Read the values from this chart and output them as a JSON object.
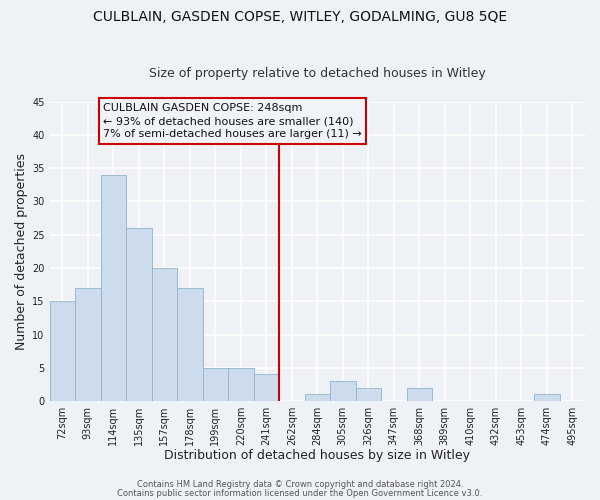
{
  "title": "CULBLAIN, GASDEN COPSE, WITLEY, GODALMING, GU8 5QE",
  "subtitle": "Size of property relative to detached houses in Witley",
  "xlabel": "Distribution of detached houses by size in Witley",
  "ylabel": "Number of detached properties",
  "bar_labels": [
    "72sqm",
    "93sqm",
    "114sqm",
    "135sqm",
    "157sqm",
    "178sqm",
    "199sqm",
    "220sqm",
    "241sqm",
    "262sqm",
    "284sqm",
    "305sqm",
    "326sqm",
    "347sqm",
    "368sqm",
    "389sqm",
    "410sqm",
    "432sqm",
    "453sqm",
    "474sqm",
    "495sqm"
  ],
  "bar_values": [
    15,
    17,
    34,
    26,
    20,
    17,
    5,
    5,
    4,
    0,
    1,
    3,
    2,
    0,
    2,
    0,
    0,
    0,
    0,
    1,
    0
  ],
  "bar_color": "#ccdcec",
  "bar_edge_color": "#90b4cc",
  "vline_x_bin": 8,
  "vline_color": "#cc0000",
  "annotation_title": "CULBLAIN GASDEN COPSE: 248sqm",
  "annotation_line1": "← 93% of detached houses are smaller (140)",
  "annotation_line2": "7% of semi-detached houses are larger (11) →",
  "annotation_box_color": "#cc0000",
  "annotation_bg": "#f0f4f8",
  "ylim": [
    0,
    45
  ],
  "yticks": [
    0,
    5,
    10,
    15,
    20,
    25,
    30,
    35,
    40,
    45
  ],
  "footer1": "Contains HM Land Registry data © Crown copyright and database right 2024.",
  "footer2": "Contains public sector information licensed under the Open Government Licence v3.0.",
  "bg_color": "#eef2f7",
  "grid_color": "#ffffff",
  "title_fontsize": 10,
  "subtitle_fontsize": 9,
  "axis_label_fontsize": 9,
  "tick_fontsize": 7,
  "annotation_fontsize": 8,
  "footer_fontsize": 6
}
